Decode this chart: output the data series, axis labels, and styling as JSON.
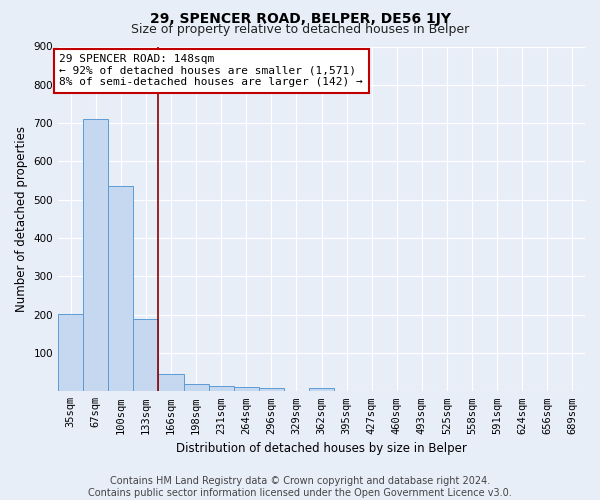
{
  "title": "29, SPENCER ROAD, BELPER, DE56 1JY",
  "subtitle": "Size of property relative to detached houses in Belper",
  "xlabel": "Distribution of detached houses by size in Belper",
  "ylabel": "Number of detached properties",
  "bar_labels": [
    "35sqm",
    "67sqm",
    "100sqm",
    "133sqm",
    "166sqm",
    "198sqm",
    "231sqm",
    "264sqm",
    "296sqm",
    "329sqm",
    "362sqm",
    "395sqm",
    "427sqm",
    "460sqm",
    "493sqm",
    "525sqm",
    "558sqm",
    "591sqm",
    "624sqm",
    "656sqm",
    "689sqm"
  ],
  "bar_values": [
    203,
    710,
    537,
    190,
    46,
    18,
    13,
    12,
    9,
    0,
    9,
    0,
    0,
    0,
    0,
    0,
    0,
    0,
    0,
    0,
    0
  ],
  "bar_color": "#c5d8ef",
  "bar_edge_color": "#5b9bd5",
  "vline_x": 3.5,
  "vline_color": "#8b0000",
  "annotation_text": "29 SPENCER ROAD: 148sqm\n← 92% of detached houses are smaller (1,571)\n8% of semi-detached houses are larger (142) →",
  "annotation_box_color": "#ffffff",
  "annotation_box_edge": "#c00000",
  "ylim": [
    0,
    900
  ],
  "yticks": [
    0,
    100,
    200,
    300,
    400,
    500,
    600,
    700,
    800,
    900
  ],
  "footer_text": "Contains HM Land Registry data © Crown copyright and database right 2024.\nContains public sector information licensed under the Open Government Licence v3.0.",
  "bg_color": "#e8eef8",
  "plot_bg_color": "#e8eef8",
  "title_fontsize": 10,
  "subtitle_fontsize": 9,
  "axis_label_fontsize": 8.5,
  "tick_fontsize": 7.5,
  "annotation_fontsize": 8,
  "footer_fontsize": 7
}
